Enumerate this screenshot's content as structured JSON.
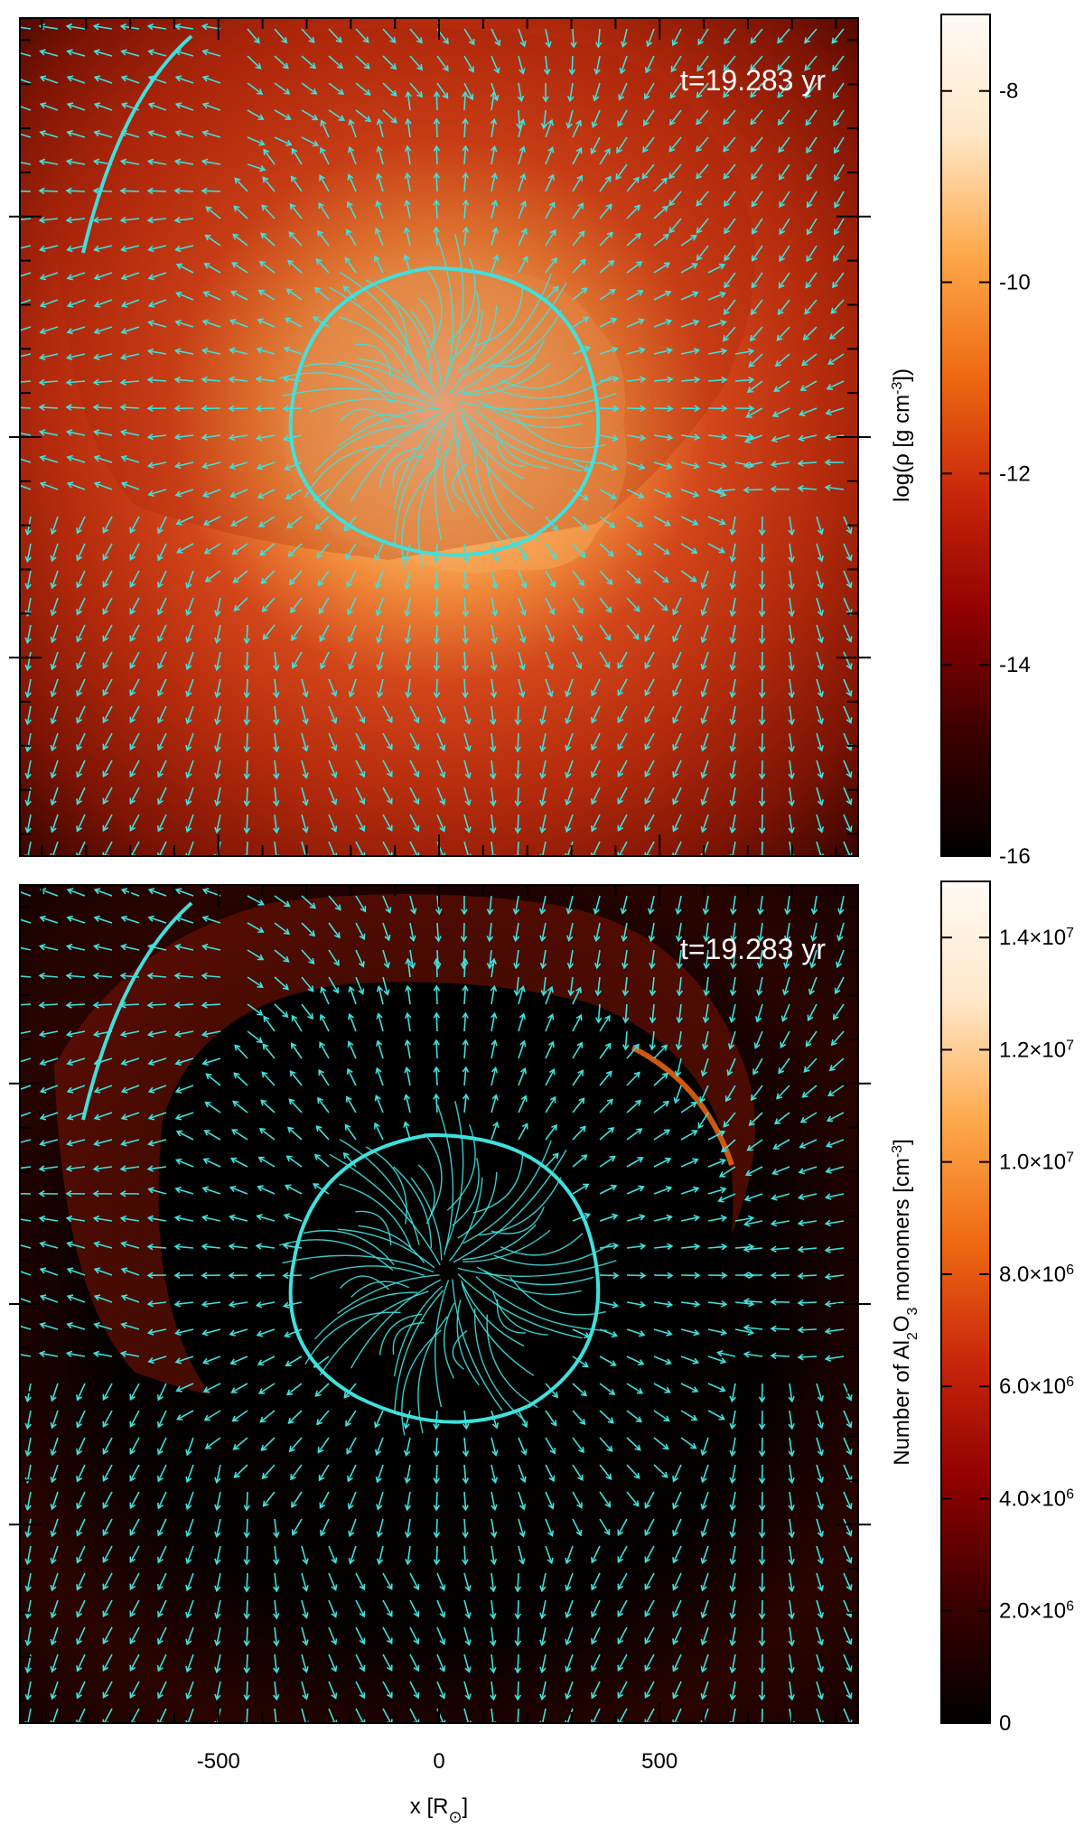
{
  "chart_data": [
    {
      "type": "heatmap",
      "title": "",
      "annotation": "t=19.283 yr",
      "xlim": [
        -950,
        950
      ],
      "ylim": [
        -950,
        950
      ],
      "grid": false,
      "overlay": "velocity field arrows (cyan)",
      "colormap": [
        "#000000",
        "#3a0000",
        "#8e0000",
        "#c8260a",
        "#ef6a12",
        "#fda84a",
        "#ffe7c8",
        "#fffaf5"
      ],
      "overlay_color": "#40e0dc",
      "colorbar": {
        "label_parts": [
          "log(ρ [g cm",
          "-3",
          "])"
        ],
        "range": [
          -16,
          -7.2
        ],
        "ticks": [
          -16,
          -14,
          -12,
          -10,
          -8
        ],
        "tick_labels": [
          "-16",
          "-14",
          "-12",
          "-10",
          "-8"
        ]
      }
    },
    {
      "type": "heatmap",
      "title": "",
      "annotation": "t=19.283 yr",
      "xlim": [
        -950,
        950
      ],
      "ylim": [
        -950,
        950
      ],
      "grid": false,
      "overlay": "velocity field arrows (cyan)",
      "colormap": [
        "#000000",
        "#3a0000",
        "#8e0000",
        "#c8260a",
        "#ef6a12",
        "#fda84a",
        "#ffe7c8",
        "#fffaf5"
      ],
      "overlay_color": "#40e0dc",
      "colorbar": {
        "label_parts": [
          "Number of Al",
          "2",
          "O",
          "3",
          " monomers [cm",
          "-3",
          "]"
        ],
        "range": [
          0,
          15000000.0
        ],
        "ticks": [
          0,
          2000000.0,
          4000000.0,
          6000000.0,
          8000000.0,
          10000000.0,
          12000000.0,
          14000000.0
        ],
        "tick_labels": [
          {
            "mant": "0",
            "exp": ""
          },
          {
            "mant": "2.0×10",
            "exp": "6"
          },
          {
            "mant": "4.0×10",
            "exp": "6"
          },
          {
            "mant": "6.0×10",
            "exp": "6"
          },
          {
            "mant": "8.0×10",
            "exp": "6"
          },
          {
            "mant": "1.0×10",
            "exp": "7"
          },
          {
            "mant": "1.2×10",
            "exp": "7"
          },
          {
            "mant": "1.4×10",
            "exp": "7"
          }
        ]
      }
    }
  ],
  "x_axis": {
    "label_parts": [
      "x [R",
      "⊙",
      "]"
    ],
    "ticks": [
      -500,
      0,
      500
    ],
    "tick_labels": [
      "-500",
      "0",
      "500"
    ]
  }
}
